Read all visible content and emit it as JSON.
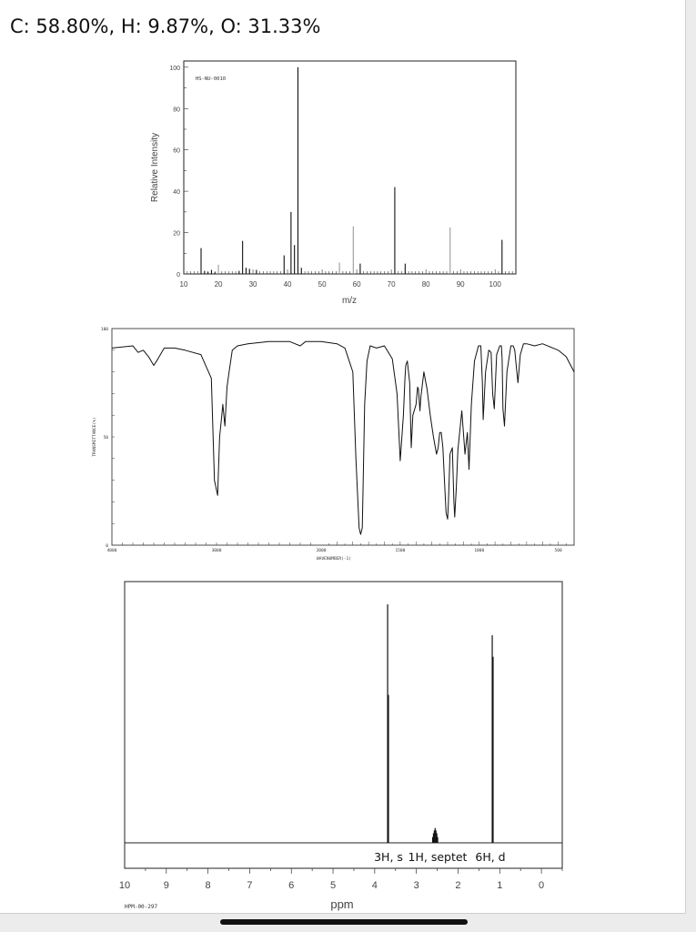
{
  "page": {
    "formula_text": "C: 58.80%, H: 9.87%, O: 31.33%"
  },
  "colors": {
    "ink": "#111111",
    "ms_faint_peak": "#9a9a9a",
    "background": "#ffffff"
  },
  "chart_data": [
    {
      "type": "bar",
      "title": "",
      "code": "HS-NU-0010",
      "xlabel": "m/z",
      "ylabel": "Relative Intensity",
      "xlim": [
        10,
        106
      ],
      "ylim": [
        0,
        103
      ],
      "x_ticks": [
        "10",
        "20",
        "30",
        "40",
        "50",
        "60",
        "70",
        "80",
        "90",
        "100"
      ],
      "y_ticks": [
        "0",
        "20",
        "40",
        "60",
        "80",
        "100"
      ],
      "grid": false,
      "peaks": [
        {
          "x": 15,
          "y": 12.5
        },
        {
          "x": 16,
          "y": 1.5
        },
        {
          "x": 17,
          "y": 1.0
        },
        {
          "x": 18,
          "y": 2.0
        },
        {
          "x": 19,
          "y": 0.8
        },
        {
          "x": 20,
          "y": 4.5,
          "faint": true
        },
        {
          "x": 26,
          "y": 1.5
        },
        {
          "x": 27,
          "y": 16.0
        },
        {
          "x": 28,
          "y": 3.0
        },
        {
          "x": 29,
          "y": 2.5
        },
        {
          "x": 31,
          "y": 2.0
        },
        {
          "x": 39,
          "y": 9.0
        },
        {
          "x": 41,
          "y": 30.0
        },
        {
          "x": 42,
          "y": 14.0
        },
        {
          "x": 43,
          "y": 100.0
        },
        {
          "x": 44,
          "y": 3.0
        },
        {
          "x": 55,
          "y": 5.5,
          "faint": true
        },
        {
          "x": 59,
          "y": 23.0,
          "faint": true
        },
        {
          "x": 61,
          "y": 5.0
        },
        {
          "x": 71,
          "y": 42.0
        },
        {
          "x": 74,
          "y": 5.0
        },
        {
          "x": 87,
          "y": 22.5,
          "faint": true
        },
        {
          "x": 102,
          "y": 16.5
        }
      ]
    },
    {
      "type": "line",
      "title": "",
      "xlabel": "WAVENUMBER(-1)",
      "ylabel": "TRANSMITTANCE(%)",
      "xlim": [
        4000,
        400
      ],
      "ylim": [
        0,
        100
      ],
      "x_ticks": [
        "4000",
        "3000",
        "2000",
        "1500",
        "1000",
        "500"
      ],
      "y_ticks": [
        "0",
        "50",
        "100"
      ],
      "grid": false,
      "series": [
        {
          "x": [
            4000,
            3800,
            3750,
            3700,
            3650,
            3600,
            3560,
            3500,
            3400,
            3300,
            3150,
            3050,
            3020,
            2990,
            2970,
            2950,
            2940,
            2920,
            2900,
            2880,
            2850,
            2800,
            2700,
            2500,
            2300,
            2200,
            2150,
            2100,
            2000,
            1900,
            1850,
            1800,
            1780,
            1760,
            1750,
            1740,
            1735,
            1725,
            1710,
            1690,
            1650,
            1600,
            1550,
            1520,
            1500,
            1480,
            1470,
            1465,
            1455,
            1440,
            1430,
            1420,
            1400,
            1390,
            1385,
            1375,
            1370,
            1350,
            1330,
            1310,
            1290,
            1270,
            1260,
            1250,
            1240,
            1230,
            1220,
            1210,
            1200,
            1195,
            1185,
            1170,
            1160,
            1155,
            1145,
            1135,
            1110,
            1090,
            1075,
            1065,
            1050,
            1030,
            1005,
            990,
            980,
            975,
            960,
            940,
            925,
            915,
            905,
            890,
            870,
            860,
            855,
            850,
            840,
            825,
            800,
            785,
            775,
            765,
            755,
            740,
            720,
            700,
            650,
            600,
            500,
            450,
            400
          ],
          "y": [
            91,
            92,
            89,
            90,
            87,
            83,
            86,
            91,
            91,
            90,
            88,
            77,
            30,
            23,
            50,
            60,
            65,
            55,
            73,
            80,
            90,
            92,
            93,
            94,
            94,
            92,
            94,
            94,
            94,
            93,
            91,
            80,
            40,
            8,
            5,
            8,
            25,
            65,
            85,
            92,
            91,
            92,
            86,
            70,
            39,
            60,
            77,
            83,
            85,
            75,
            45,
            60,
            65,
            73,
            72,
            62,
            68,
            80,
            72,
            60,
            50,
            42,
            45,
            52,
            52,
            45,
            30,
            15,
            12,
            20,
            42,
            45,
            20,
            13,
            27,
            44,
            62,
            42,
            52,
            35,
            65,
            85,
            92,
            92,
            75,
            58,
            80,
            90,
            89,
            70,
            63,
            88,
            92,
            92,
            86,
            63,
            55,
            80,
            92,
            92,
            90,
            82,
            75,
            88,
            93,
            93,
            92,
            93,
            90,
            87,
            80
          ]
        }
      ]
    },
    {
      "type": "bar",
      "title": "",
      "code": "HPM-00-297",
      "xlabel": "ppm",
      "xlim": [
        10,
        -0.5
      ],
      "ylim": [
        0,
        100
      ],
      "x_ticks": [
        "10",
        "9",
        "8",
        "7",
        "6",
        "5",
        "4",
        "3",
        "2",
        "1",
        "0"
      ],
      "grid": false,
      "peaks": [
        {
          "x": 3.69,
          "y": 100
        },
        {
          "x": 3.67,
          "y": 62
        },
        {
          "x": 2.61,
          "y": 2.4
        },
        {
          "x": 2.59,
          "y": 4.0
        },
        {
          "x": 2.57,
          "y": 5.2
        },
        {
          "x": 2.55,
          "y": 6.2
        },
        {
          "x": 2.53,
          "y": 5.2
        },
        {
          "x": 2.51,
          "y": 4.0
        },
        {
          "x": 2.49,
          "y": 2.4
        },
        {
          "x": 1.18,
          "y": 87
        },
        {
          "x": 1.16,
          "y": 78
        }
      ],
      "annotations": [
        "3H, s",
        "1H, septet",
        "6H, d"
      ]
    }
  ]
}
